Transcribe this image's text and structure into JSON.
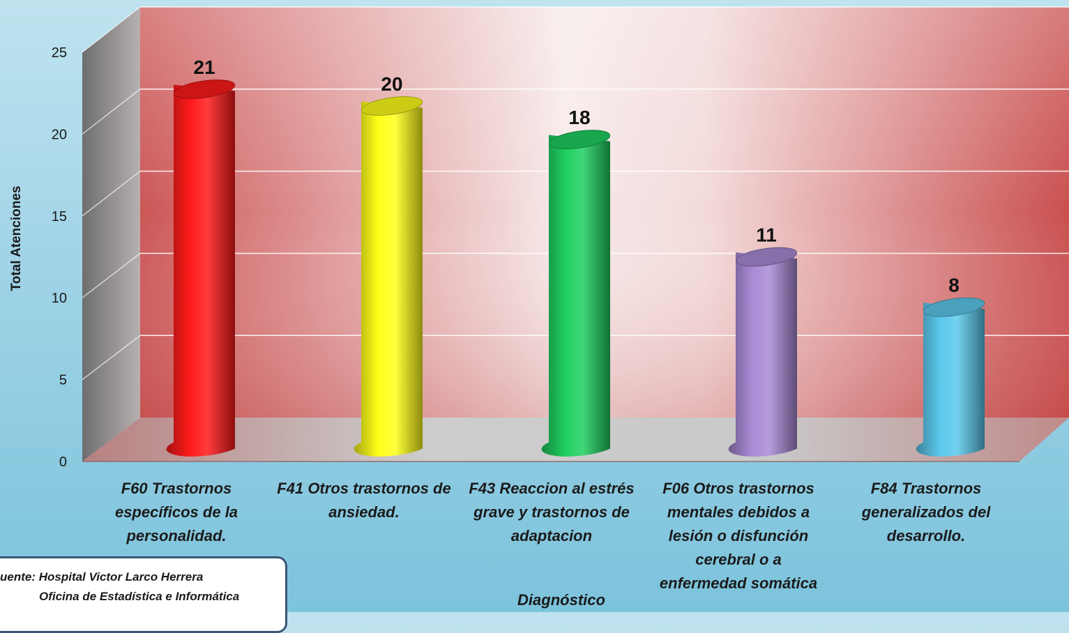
{
  "chart_data": {
    "type": "bar",
    "style": "3d-cylinder",
    "categories": [
      "F60 Trastornos específicos de la personalidad.",
      "F41 Otros trastornos de ansiedad.",
      "F43 Reaccion al estrés grave y trastornos de adaptacion",
      "F06 Otros trastornos mentales debidos a lesión o disfunción cerebral o a enfermedad somática",
      "F84 Trastornos generalizados del desarrollo."
    ],
    "category_lines": [
      [
        "F60 Trastornos",
        "específicos de la",
        "personalidad."
      ],
      [
        "F41 Otros trastornos de",
        "ansiedad."
      ],
      [
        "F43 Reaccion al estrés",
        "grave y trastornos de",
        "adaptacion"
      ],
      [
        "F06 Otros trastornos",
        "mentales debidos a",
        "lesión o disfunción",
        "cerebral o a",
        "enfermedad somática"
      ],
      [
        "F84 Trastornos",
        "generalizados del",
        "desarrollo."
      ]
    ],
    "values": [
      21,
      20,
      18,
      11,
      8
    ],
    "data_labels": [
      "21",
      "20",
      "18",
      "11",
      "8"
    ],
    "bar_colors": [
      "#ff1a1a",
      "#ffff1a",
      "#1fd060",
      "#a98bd6",
      "#5cc9ec"
    ],
    "ylabel": "Total Atenciones",
    "xlabel": "Diagnóstico",
    "ylim": [
      0,
      25
    ],
    "yticks": [
      0,
      5,
      10,
      15,
      20,
      25
    ],
    "ytick_labels": [
      "0",
      "5",
      "10",
      "15",
      "20",
      "25"
    ],
    "grid": true,
    "wall_color": "#d97a7a",
    "floor_color": "#c7c7c7"
  },
  "source": {
    "line1": "uente:  Hospital Victor Larco Herrera",
    "line2": "Oficina de Estadística e Informática"
  }
}
